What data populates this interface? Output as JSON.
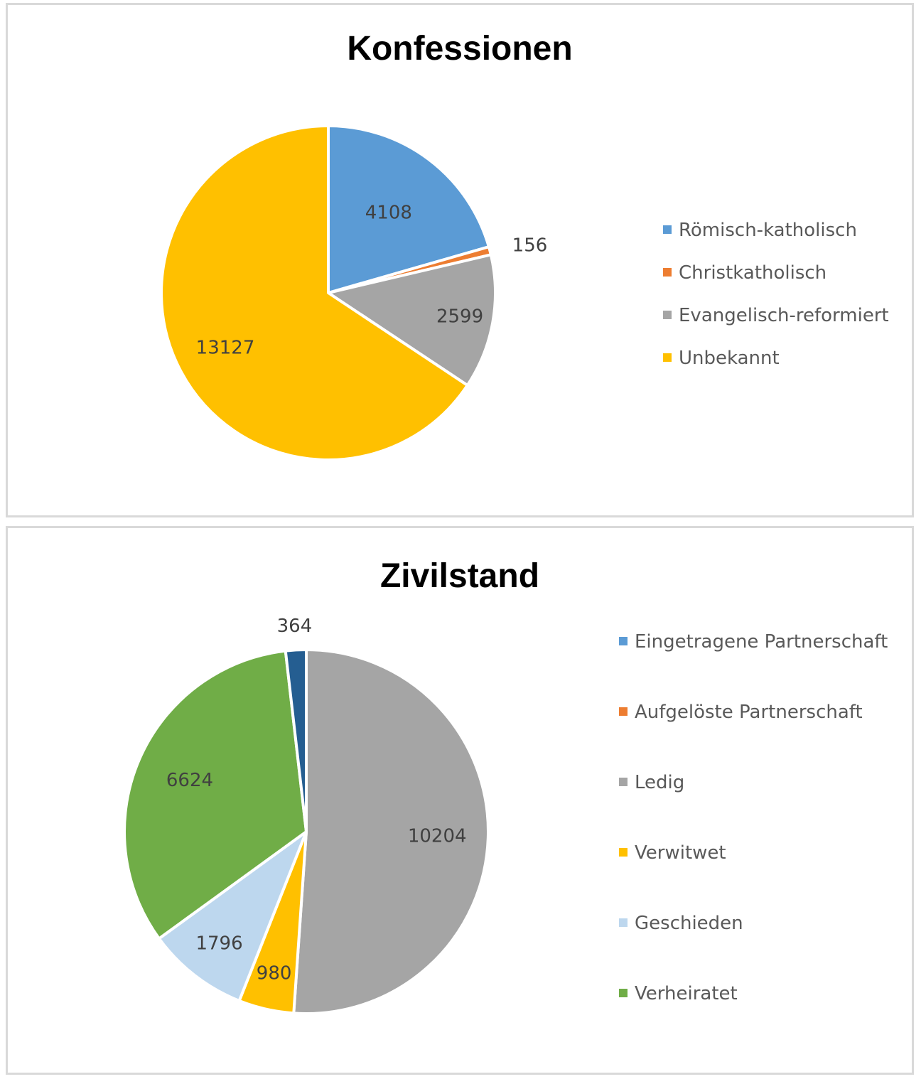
{
  "chart_data": [
    {
      "type": "pie",
      "title": "Konfessionen",
      "categories": [
        "Römisch-katholisch",
        "Christkatholisch",
        "Evangelisch-reformiert",
        "Unbekannt"
      ],
      "values": [
        4108,
        156,
        2599,
        13127
      ],
      "data_labels": [
        "4108",
        "156",
        "2599",
        "13127"
      ],
      "colors": [
        "#5b9bd5",
        "#ed7d31",
        "#a5a5a5",
        "#ffc000"
      ],
      "legend_position": "right",
      "legend_colors": [
        "#5b9bd5",
        "#ed7d31",
        "#a5a5a5",
        "#ffc000"
      ]
    },
    {
      "type": "pie",
      "title": "Zivilstand",
      "legend_categories": [
        "Eingetragene Partnerschaft",
        "Aufgelöste Partnerschaft",
        "Ledig",
        "Verwitwet",
        "Geschieden",
        "Verheiratet"
      ],
      "legend_colors": [
        "#5b9bd5",
        "#ed7d31",
        "#a5a5a5",
        "#ffc000",
        "#bdd7ee",
        "#70ad47"
      ],
      "values": [
        10204,
        980,
        1796,
        6624,
        364
      ],
      "data_labels": [
        "10204",
        "980",
        "1796",
        "6624",
        "364"
      ],
      "colors": [
        "#a5a5a5",
        "#ffc000",
        "#bdd7ee",
        "#70ad47",
        "#255e91"
      ],
      "legend_position": "right"
    }
  ]
}
